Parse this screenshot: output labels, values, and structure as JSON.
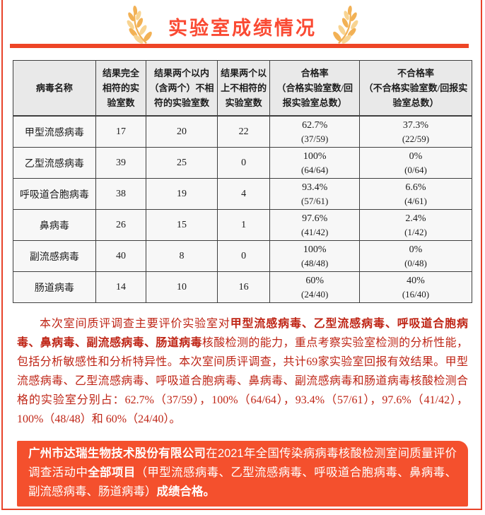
{
  "header": {
    "title": "实验室成绩情况"
  },
  "colors": {
    "accent_red": "#fa4a33",
    "divider_red": "#ee4526",
    "page_border_red": "#e8432a",
    "paragraph_red": "#bf2516",
    "highlight_box_bg": "#f4502d",
    "laurel_gold": "#f2b155",
    "laurel_gold_light": "#f8d492",
    "table_header_bg": "#e9e9e9",
    "table_body_bg": "#f7f7f7"
  },
  "table": {
    "columns": [
      {
        "label": "病毒名称",
        "sub": ""
      },
      {
        "label": "结果完全相符的实验室数",
        "sub": ""
      },
      {
        "label": "结果两个以内（含两个）不相符的实验室数",
        "sub": ""
      },
      {
        "label": "结果两个以上不相符的实验室数",
        "sub": ""
      },
      {
        "label": "合格率",
        "sub": "（合格实验室数/回报实验室总数）"
      },
      {
        "label": "不合格率",
        "sub": "（不合格实验室数/回报实验室总数）"
      }
    ],
    "rows": [
      {
        "virus": "甲型流感病毒",
        "full_match": "17",
        "within_two": "20",
        "over_two": "22",
        "pass_pct": "62.7%",
        "pass_frac": "(37/59)",
        "fail_pct": "37.3%",
        "fail_frac": "(22/59)"
      },
      {
        "virus": "乙型流感病毒",
        "full_match": "39",
        "within_two": "25",
        "over_two": "0",
        "pass_pct": "100%",
        "pass_frac": "(64/64)",
        "fail_pct": "0%",
        "fail_frac": "(0/64)"
      },
      {
        "virus": "呼吸道合胞病毒",
        "full_match": "38",
        "within_two": "19",
        "over_two": "4",
        "pass_pct": "93.4%",
        "pass_frac": "(57/61)",
        "fail_pct": "6.6%",
        "fail_frac": "(4/61)"
      },
      {
        "virus": "鼻病毒",
        "full_match": "26",
        "within_two": "15",
        "over_two": "1",
        "pass_pct": "97.6%",
        "pass_frac": "(41/42)",
        "fail_pct": "2.4%",
        "fail_frac": "(1/42)"
      },
      {
        "virus": "副流感病毒",
        "full_match": "40",
        "within_two": "8",
        "over_two": "0",
        "pass_pct": "100%",
        "pass_frac": "(48/48)",
        "fail_pct": "0%",
        "fail_frac": "(0/48)"
      },
      {
        "virus": "肠道病毒",
        "full_match": "14",
        "within_two": "10",
        "over_two": "16",
        "pass_pct": "60%",
        "pass_frac": "(24/40)",
        "fail_pct": "40%",
        "fail_frac": "(16/40)"
      }
    ]
  },
  "summary_paragraph": {
    "segments": [
      {
        "text": "本次室间质评调查主要评价实验室对",
        "bold": false
      },
      {
        "text": "甲型流感病毒、乙型流感病毒、呼吸道合胞病毒、鼻病毒、副流感病毒、肠道病毒",
        "bold": true
      },
      {
        "text": "核酸检测的能力，重点考察实验室检测的分析性能，包括分析敏感性和分析特异性。本次室间质评调查，共计69家实验室回报有效结果。甲型流感病毒、乙型流感病毒、呼吸道合胞病毒、鼻病毒、副流感病毒和肠道病毒核酸检测合格的实验室分别占：62.7%（37/59），100%（64/64），93.4%（57/61），97.6%（41/42），100%（48/48）和 60%（24/40）。",
        "bold": false
      }
    ]
  },
  "highlight_box": {
    "segments": [
      {
        "text": "广州市达瑞生物技术股份有限公司",
        "bold": true
      },
      {
        "text": "在2021年全国传染病病毒核酸检测室间质量评价调查活动中",
        "bold": false
      },
      {
        "text": "全部项目",
        "bold": true
      },
      {
        "text": "（甲型流感病毒、乙型流感病毒、呼吸道合胞病毒、鼻病毒、副流感病毒、肠道病毒）",
        "bold": false
      },
      {
        "text": "成绩合格。",
        "bold": true
      }
    ]
  }
}
